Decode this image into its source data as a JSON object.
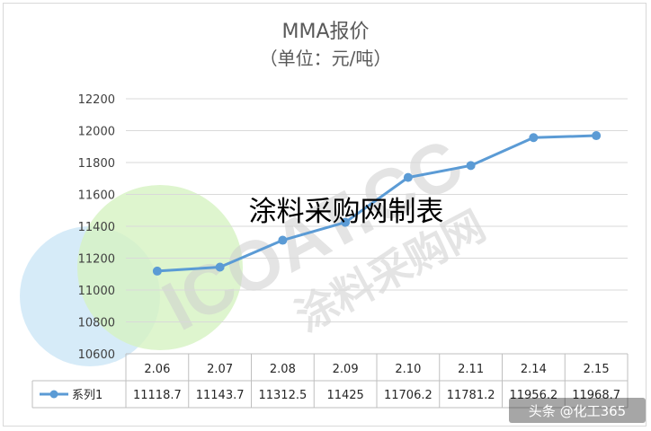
{
  "chart_data": {
    "type": "line",
    "title": "MMA报价",
    "subtitle": "（单位：元/吨）",
    "categories": [
      "2.06",
      "2.07",
      "2.08",
      "2.09",
      "2.10",
      "2.11",
      "2.14",
      "2.15"
    ],
    "series": [
      {
        "name": "系列1",
        "values": [
          11118.7,
          11143.7,
          11312.5,
          11425,
          11706.2,
          11781.2,
          11956.2,
          11968.7
        ],
        "labels": [
          "11118.7",
          "11143.7",
          "11312.5",
          "11425",
          "11706.2",
          "11781.2",
          "11956.2",
          "11968.7"
        ],
        "color": "#5b9bd5"
      }
    ],
    "yticks": [
      "10600",
      "10800",
      "11000",
      "11200",
      "11400",
      "11600",
      "11800",
      "12000",
      "12200"
    ],
    "ylim": [
      10600,
      12200
    ],
    "grid": true,
    "legend": "data-table"
  },
  "overlay_text": "涂料采购网制表",
  "watermark": {
    "line1": "ICOAT.CC",
    "line2": "涂料采购网"
  },
  "footer": "头条 @化工365",
  "colors": {
    "line": "#5b9bd5",
    "grid": "#d9d9d9",
    "circle_blue": "#cfe8f7",
    "circle_green": "#d4f2c0"
  }
}
